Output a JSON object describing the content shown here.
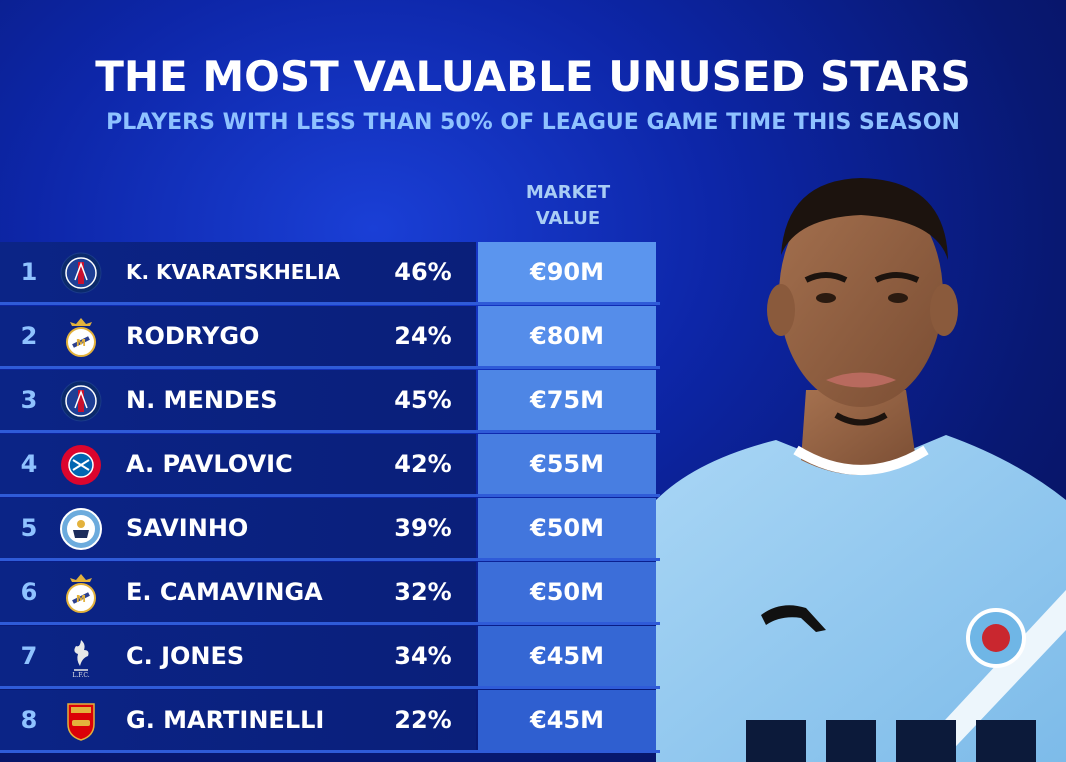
{
  "chart_data": {
    "type": "table",
    "title": "THE MOST VALUABLE UNUSED STARS",
    "subtitle": "PLAYERS WITH LESS THAN 50% OF LEAGUE GAME TIME THIS SEASON",
    "columns": [
      "",
      "",
      "",
      "",
      "MARKET VALUE"
    ],
    "value_header_line1": "MARKET",
    "value_header_line2": "VALUE",
    "rows": [
      {
        "rank": "1",
        "club_icon": "psg-crest-icon",
        "player": "K. KVARATSKHELIA",
        "game_time": "46%",
        "game_time_pct": 46,
        "market_value": "€90M",
        "market_value_m": 90
      },
      {
        "rank": "2",
        "club_icon": "real-madrid-crest-icon",
        "player": "RODRYGO",
        "game_time": "24%",
        "game_time_pct": 24,
        "market_value": "€80M",
        "market_value_m": 80
      },
      {
        "rank": "3",
        "club_icon": "psg-crest-icon",
        "player": "N. MENDES",
        "game_time": "45%",
        "game_time_pct": 45,
        "market_value": "€75M",
        "market_value_m": 75
      },
      {
        "rank": "4",
        "club_icon": "bayern-crest-icon",
        "player": "A. PAVLOVIC",
        "game_time": "42%",
        "game_time_pct": 42,
        "market_value": "€55M",
        "market_value_m": 55
      },
      {
        "rank": "5",
        "club_icon": "man-city-crest-icon",
        "player": "SAVINHO",
        "game_time": "39%",
        "game_time_pct": 39,
        "market_value": "€50M",
        "market_value_m": 50
      },
      {
        "rank": "6",
        "club_icon": "real-madrid-crest-icon",
        "player": "E. CAMAVINGA",
        "game_time": "32%",
        "game_time_pct": 32,
        "market_value": "€50M",
        "market_value_m": 50
      },
      {
        "rank": "7",
        "club_icon": "liverpool-crest-icon",
        "player": "C. JONES",
        "game_time": "34%",
        "game_time_pct": 34,
        "market_value": "€45M",
        "market_value_m": 45
      },
      {
        "rank": "8",
        "club_icon": "arsenal-crest-icon",
        "player": "G. MARTINELLI",
        "game_time": "22%",
        "game_time_pct": 22,
        "market_value": "€45M",
        "market_value_m": 45
      }
    ]
  },
  "colors": {
    "value_cell_top": "#5b95ee",
    "value_cell_bottom": "#2f5fd0",
    "rank_text": "#8fc2ff",
    "subtitle_text": "#8fc2ff"
  }
}
